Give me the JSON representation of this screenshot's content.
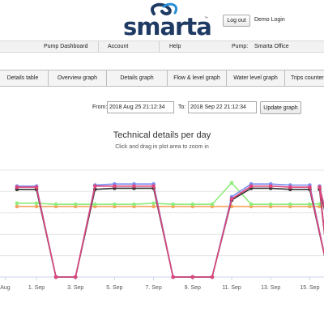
{
  "header": {
    "logo_text": "smarta",
    "logo_tm": "™",
    "logout_label": "Log out",
    "user_label": "Demo Login"
  },
  "nav": {
    "items": [
      "Pump Dashboard",
      "Account",
      "Help"
    ],
    "pump_label": "Pump:",
    "pump_value": "Smarta Office"
  },
  "tabs": [
    "Details table",
    "Overview graph",
    "Details graph",
    "Flow & level graph",
    "Water level graph",
    "Trips counter"
  ],
  "range": {
    "from_label": "From:",
    "from_value": "2018 Aug 25 21:12:34",
    "to_label": "To:",
    "to_value": "2018 Sep 22 21:12:34",
    "update_label": "Update graph"
  },
  "colors": {
    "blue": "#7b8ef0",
    "black": "#333333",
    "pink": "#e0457b",
    "green": "#90ed7d",
    "orange": "#f7a35c",
    "logo": "#1f3a63"
  },
  "chart_data": {
    "type": "line",
    "title": "Technical details per day",
    "subtitle": "Click and drag in plot area to zoom in",
    "tick_labels": [
      "Aug",
      "1. Sep",
      "3. Sep",
      "5. Sep",
      "7. Sep",
      "9. Sep",
      "11. Sep",
      "13. Sep",
      "15. Sep"
    ],
    "x_day_start": -1.5,
    "x_day_end": 15.9,
    "ylim": [
      0,
      10
    ],
    "series": [
      {
        "color": "#7b8ef0",
        "values": [
          8.5,
          8.5,
          0,
          0,
          8.6,
          8.7,
          8.7,
          8.7,
          0,
          0,
          0,
          7.5,
          8.7,
          8.7,
          8.6,
          8.6,
          0,
          0,
          8.5,
          0
        ]
      },
      {
        "color": "#333333",
        "values": [
          8.2,
          8.2,
          0,
          0,
          8.2,
          8.3,
          8.3,
          8.3,
          0,
          0,
          0,
          7.2,
          8.3,
          8.3,
          8.2,
          8.2,
          0,
          0,
          8.2,
          0
        ]
      },
      {
        "color": "#90ed7d",
        "values": [
          6.9,
          6.9,
          6.8,
          6.8,
          6.8,
          6.8,
          6.8,
          6.9,
          6.8,
          6.8,
          6.8,
          8.8,
          6.8,
          6.8,
          6.8,
          6.8,
          6.9,
          6.8,
          6.8,
          6.9
        ]
      },
      {
        "color": "#f7a35c",
        "values": [
          6.6,
          6.6,
          6.6,
          6.6,
          6.6,
          6.6,
          6.6,
          6.6,
          6.6,
          6.6,
          6.6,
          6.6,
          6.6,
          6.6,
          6.6,
          6.6,
          6.6,
          6.6,
          6.6,
          6.6
        ]
      },
      {
        "color": "#e0457b",
        "values": [
          8.4,
          8.4,
          0,
          0,
          8.5,
          8.5,
          8.5,
          8.5,
          0,
          0,
          0,
          7.3,
          8.5,
          8.5,
          8.4,
          8.4,
          0,
          0,
          8.4,
          0
        ]
      }
    ],
    "x_days": [
      -1,
      0,
      1,
      2,
      3,
      4,
      5,
      6,
      7,
      8,
      9,
      10,
      11,
      12,
      13,
      14,
      15,
      15.6,
      14.5,
      15.9
    ]
  }
}
